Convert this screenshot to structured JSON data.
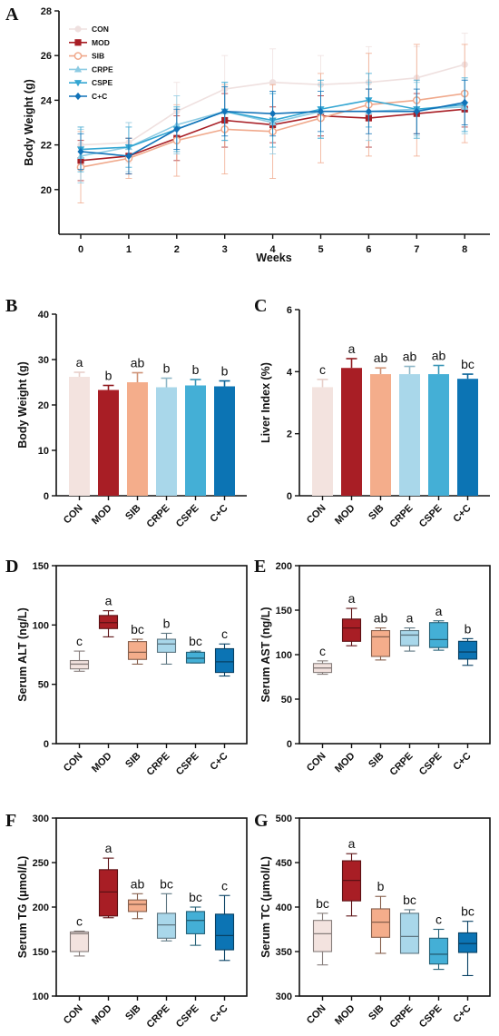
{
  "groups": [
    "CON",
    "MOD",
    "SIB",
    "CRPE",
    "CSPE",
    "C+C"
  ],
  "colors": {
    "CON": "#f3e3df",
    "MOD": "#a81e25",
    "SIB": "#f4ad8b",
    "CRPE": "#a9d7ea",
    "CSPE": "#44afd6",
    "C+C": "#0c74b4",
    "CON_line": "#efe0df",
    "SIB_line": "#f0a98c",
    "CRPE_line": "#8ccbe3",
    "CSPE_line": "#34a6d2",
    "C+C_line": "#1172b8"
  },
  "chart_data": [
    {
      "panel": "A",
      "type": "line",
      "ylabel": "Body Weight (g)",
      "xlabel": "Weeks",
      "x": [
        0,
        1,
        2,
        3,
        4,
        5,
        6,
        7,
        8
      ],
      "ylim": [
        18,
        28
      ],
      "yticks": [
        20,
        22,
        24,
        26,
        28
      ],
      "legend": "top-left",
      "series": [
        {
          "name": "CON",
          "marker": "circle",
          "values": [
            22.0,
            22.1,
            23.5,
            24.5,
            24.8,
            24.7,
            24.8,
            25.0,
            25.6
          ],
          "err": [
            0.8,
            0.9,
            1.3,
            1.5,
            1.5,
            1.3,
            1.6,
            1.4,
            1.4
          ]
        },
        {
          "name": "MOD",
          "marker": "square",
          "values": [
            21.3,
            21.5,
            22.3,
            23.1,
            22.9,
            23.3,
            23.2,
            23.4,
            23.6
          ],
          "err": [
            0.9,
            0.8,
            1.0,
            1.2,
            0.8,
            0.9,
            1.3,
            0.9,
            0.8
          ]
        },
        {
          "name": "SIB",
          "marker": "open-circle",
          "values": [
            21.0,
            21.4,
            22.2,
            22.7,
            22.6,
            23.2,
            23.8,
            24.0,
            24.3
          ],
          "err": [
            1.6,
            0.9,
            1.6,
            2.0,
            2.1,
            2.0,
            2.3,
            2.5,
            2.2
          ]
        },
        {
          "name": "CRPE",
          "marker": "triangle-up",
          "values": [
            21.5,
            21.9,
            22.9,
            23.5,
            23.0,
            23.5,
            23.5,
            23.6,
            23.7
          ],
          "err": [
            1.2,
            1.1,
            1.3,
            1.3,
            1.4,
            1.2,
            1.3,
            1.2,
            1.2
          ]
        },
        {
          "name": "CSPE",
          "marker": "triangle-down",
          "values": [
            21.8,
            21.9,
            22.7,
            23.5,
            23.1,
            23.6,
            24.0,
            23.6,
            23.8
          ],
          "err": [
            1.0,
            0.9,
            1.0,
            1.3,
            1.2,
            1.3,
            1.2,
            1.3,
            1.2
          ]
        },
        {
          "name": "C+C",
          "marker": "diamond",
          "values": [
            21.7,
            21.5,
            22.7,
            23.5,
            23.4,
            23.5,
            23.5,
            23.5,
            23.9
          ],
          "err": [
            0.8,
            0.8,
            0.9,
            1.1,
            1.0,
            0.9,
            1.0,
            1.0,
            1.0
          ]
        }
      ]
    },
    {
      "panel": "B",
      "type": "bar",
      "ylabel": "Body Weight (g)",
      "ylim": [
        0,
        40
      ],
      "yticks": [
        0,
        10,
        20,
        30,
        40
      ],
      "categories": [
        "CON",
        "MOD",
        "SIB",
        "CRPE",
        "CSPE",
        "C+C"
      ],
      "values": [
        26.2,
        23.3,
        25.0,
        23.9,
        24.3,
        24.1
      ],
      "err": [
        1.0,
        1.0,
        2.1,
        2.0,
        1.3,
        1.2
      ],
      "letters": [
        "a",
        "b",
        "ab",
        "b",
        "b",
        "b"
      ]
    },
    {
      "panel": "C",
      "type": "bar",
      "ylabel": "Liver Index (%)",
      "ylim": [
        0,
        6
      ],
      "yticks": [
        0,
        2,
        4,
        6
      ],
      "categories": [
        "CON",
        "MOD",
        "SIB",
        "CRPE",
        "CSPE",
        "C+C"
      ],
      "values": [
        3.5,
        4.12,
        3.92,
        3.92,
        3.92,
        3.77
      ],
      "err": [
        0.25,
        0.3,
        0.2,
        0.25,
        0.28,
        0.15
      ],
      "letters": [
        "c",
        "a",
        "ab",
        "ab",
        "ab",
        "bc"
      ]
    },
    {
      "panel": "D",
      "type": "box",
      "ylabel": "Serum ALT (ng/L)",
      "ylim": [
        0,
        150
      ],
      "yticks": [
        0,
        50,
        100,
        150
      ],
      "categories": [
        "CON",
        "MOD",
        "SIB",
        "CRPE",
        "CSPE",
        "C+C"
      ],
      "boxes": [
        {
          "min": 61,
          "q1": 63,
          "median": 67,
          "q3": 70,
          "max": 78
        },
        {
          "min": 90,
          "q1": 97,
          "median": 102,
          "q3": 108,
          "max": 112
        },
        {
          "min": 67,
          "q1": 71,
          "median": 77,
          "q3": 86,
          "max": 88
        },
        {
          "min": 67,
          "q1": 77,
          "median": 84,
          "q3": 88,
          "max": 93
        },
        {
          "min": 68,
          "q1": 68,
          "median": 72,
          "q3": 77,
          "max": 78
        },
        {
          "min": 57,
          "q1": 60,
          "median": 69,
          "q3": 80,
          "max": 84
        }
      ],
      "letters": [
        "c",
        "a",
        "bc",
        "b",
        "bc",
        "c"
      ]
    },
    {
      "panel": "E",
      "type": "box",
      "ylabel": "Serum AST (ng/L)",
      "ylim": [
        0,
        200
      ],
      "yticks": [
        0,
        50,
        100,
        150,
        200
      ],
      "categories": [
        "CON",
        "MOD",
        "SIB",
        "CRPE",
        "CSPE",
        "C+C"
      ],
      "boxes": [
        {
          "min": 78,
          "q1": 80,
          "median": 85,
          "q3": 90,
          "max": 93
        },
        {
          "min": 110,
          "q1": 115,
          "median": 130,
          "q3": 140,
          "max": 152
        },
        {
          "min": 94,
          "q1": 98,
          "median": 120,
          "q3": 127,
          "max": 130
        },
        {
          "min": 104,
          "q1": 110,
          "median": 122,
          "q3": 127,
          "max": 130
        },
        {
          "min": 105,
          "q1": 108,
          "median": 117,
          "q3": 136,
          "max": 138
        },
        {
          "min": 88,
          "q1": 95,
          "median": 103,
          "q3": 115,
          "max": 118
        }
      ],
      "letters": [
        "c",
        "a",
        "ab",
        "a",
        "a",
        "b"
      ]
    },
    {
      "panel": "F",
      "type": "box",
      "ylabel": "Serum TG (μmol/L)",
      "ylim": [
        100,
        300
      ],
      "yticks": [
        100,
        150,
        200,
        250,
        300
      ],
      "categories": [
        "CON",
        "MOD",
        "SIB",
        "CRPE",
        "CSPE",
        "C+C"
      ],
      "boxes": [
        {
          "min": 145,
          "q1": 150,
          "median": 170,
          "q3": 172,
          "max": 173
        },
        {
          "min": 188,
          "q1": 190,
          "median": 217,
          "q3": 242,
          "max": 255
        },
        {
          "min": 187,
          "q1": 195,
          "median": 203,
          "q3": 208,
          "max": 215
        },
        {
          "min": 162,
          "q1": 165,
          "median": 180,
          "q3": 193,
          "max": 215
        },
        {
          "min": 157,
          "q1": 170,
          "median": 185,
          "q3": 195,
          "max": 200
        },
        {
          "min": 140,
          "q1": 152,
          "median": 168,
          "q3": 192,
          "max": 213
        }
      ],
      "letters": [
        "c",
        "a",
        "ab",
        "bc",
        "bc",
        "c"
      ]
    },
    {
      "panel": "G",
      "type": "box",
      "ylabel": "Serum TC (μmol/L)",
      "ylim": [
        300,
        500
      ],
      "yticks": [
        300,
        350,
        400,
        450,
        500
      ],
      "categories": [
        "CON",
        "MOD",
        "SIB",
        "CRPE",
        "CSPE",
        "C+C"
      ],
      "boxes": [
        {
          "min": 335,
          "q1": 350,
          "median": 370,
          "q3": 385,
          "max": 393
        },
        {
          "min": 390,
          "q1": 407,
          "median": 430,
          "q3": 452,
          "max": 460
        },
        {
          "min": 348,
          "q1": 366,
          "median": 383,
          "q3": 398,
          "max": 412
        },
        {
          "min": 348,
          "q1": 348,
          "median": 367,
          "q3": 393,
          "max": 397
        },
        {
          "min": 330,
          "q1": 336,
          "median": 347,
          "q3": 365,
          "max": 375
        },
        {
          "min": 323,
          "q1": 349,
          "median": 359,
          "q3": 371,
          "max": 384
        }
      ],
      "letters": [
        "bc",
        "a",
        "b",
        "bc",
        "c",
        "bc"
      ]
    }
  ]
}
